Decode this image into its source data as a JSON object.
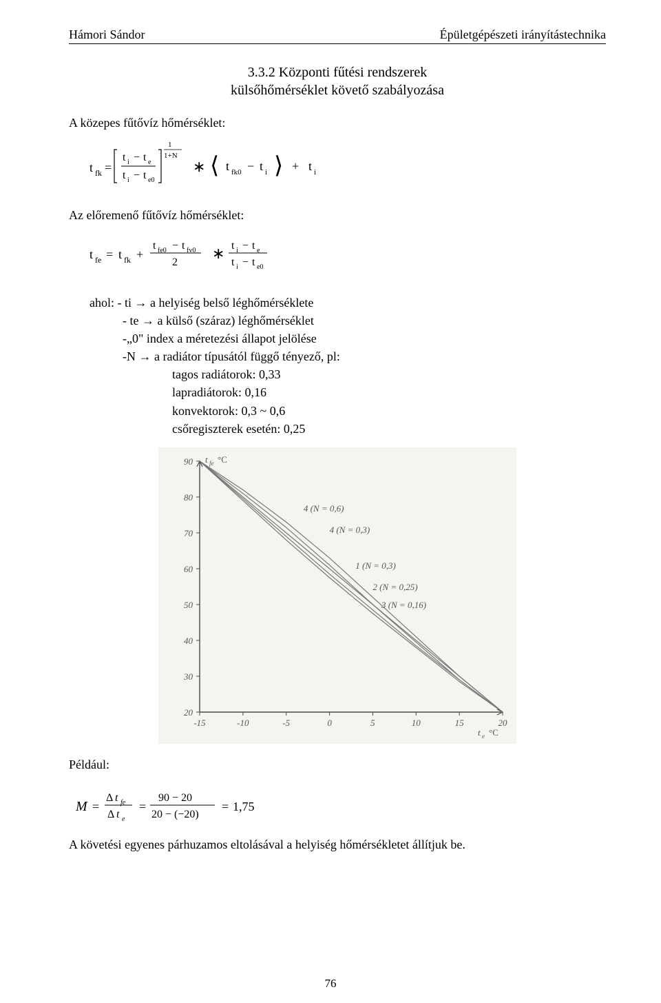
{
  "header": {
    "left": "Hámori Sándor",
    "right": "Épületgépészeti irányítástechnika"
  },
  "section": {
    "number": "3.3.2",
    "title_line1": "3.3.2 Központi fűtési rendszerek",
    "title_line2": "külsőhőmérséklet követő szabályozása"
  },
  "intro": {
    "kozepes_label": "A közepes fűtővíz hőmérséklet:",
    "eloremeno_label": "Az előremenő fűtővíz hőmérséklet:"
  },
  "formula1": {
    "lhs_sub": "fk",
    "frac_top": "t_i − t_e",
    "frac_bot": "t_i − t_e0",
    "exp_top": "1",
    "exp_bot": "1+N",
    "mid_a": "t_fk0 − t_i",
    "tail": "+  t_i",
    "font_size": 18
  },
  "formula2": {
    "lhs_sub": "fe",
    "rhs_first_sub": "fk",
    "frac1_top": "t_fe0 − t_fv0",
    "frac1_bot": "2",
    "frac2_top": "t_i − t_e",
    "frac2_bot": "t_i − t_e0",
    "font_size": 18
  },
  "definitions": {
    "intro": "ahol: - ti → a helyiség belső léghőmérséklete",
    "line2": "- te → a külső (száraz) léghőmérséklet",
    "line3": "-„0\" index a méretezési állapot jelölése",
    "line4": "-N → a radiátor típusától függő tényező, pl:",
    "sub1": "tagos radiátorok: 0,33",
    "sub2": "lapradiátorok: 0,16",
    "sub3": "konvektorok: 0,3 ~ 0,6",
    "sub4": "csőregiszterek esetén: 0,25"
  },
  "chart": {
    "type": "line",
    "background": "#f5f4f0",
    "axis_color": "#4a4a4a",
    "curve_color": "#777777",
    "label_color": "#555555",
    "xlim": [
      -15,
      20
    ],
    "ylim": [
      20,
      90
    ],
    "xticks": [
      -15,
      -10,
      -5,
      0,
      5,
      10,
      15,
      20
    ],
    "yticks": [
      20,
      30,
      40,
      50,
      60,
      70,
      80,
      90
    ],
    "y_label": "t_fe °C",
    "x_label": "t_e °C",
    "curve_labels": [
      {
        "text": "4 (N = 0,6)",
        "x": -3,
        "y": 76
      },
      {
        "text": "4 (N = 0,3)",
        "x": 0,
        "y": 70
      },
      {
        "text": "1 (N = 0,3)",
        "x": 3,
        "y": 60
      },
      {
        "text": "2 (N = 0,25)",
        "x": 5,
        "y": 54
      },
      {
        "text": "3 (N = 0,16)",
        "x": 6,
        "y": 49
      }
    ],
    "curves": [
      {
        "points": [
          [
            -15,
            90
          ],
          [
            -10,
            82
          ],
          [
            -5,
            73
          ],
          [
            0,
            63
          ],
          [
            5,
            52
          ],
          [
            10,
            41
          ],
          [
            15,
            30
          ],
          [
            20,
            20
          ]
        ]
      },
      {
        "points": [
          [
            -15,
            90
          ],
          [
            -10,
            81
          ],
          [
            -5,
            71.5
          ],
          [
            0,
            61
          ],
          [
            5,
            50
          ],
          [
            10,
            39.5
          ],
          [
            15,
            29
          ],
          [
            20,
            20
          ]
        ]
      },
      {
        "points": [
          [
            -15,
            90
          ],
          [
            -10,
            80
          ],
          [
            -5,
            70
          ],
          [
            0,
            60
          ],
          [
            5,
            50
          ],
          [
            10,
            40
          ],
          [
            15,
            30
          ],
          [
            20,
            20
          ]
        ]
      },
      {
        "points": [
          [
            -15,
            90
          ],
          [
            -10,
            79.5
          ],
          [
            -5,
            69
          ],
          [
            0,
            58.5
          ],
          [
            5,
            48.5
          ],
          [
            10,
            38.5
          ],
          [
            15,
            29
          ],
          [
            20,
            20
          ]
        ]
      },
      {
        "points": [
          [
            -15,
            90
          ],
          [
            -10,
            79
          ],
          [
            -5,
            68
          ],
          [
            0,
            57.5
          ],
          [
            5,
            47.5
          ],
          [
            10,
            38
          ],
          [
            15,
            28.5
          ],
          [
            20,
            20
          ]
        ]
      }
    ],
    "font_size": 13,
    "tick_font_size": 13
  },
  "example": {
    "label": "Például:",
    "lhs": "M",
    "frac1_top": "Δt_fe",
    "frac1_bot": "Δt_e",
    "frac2_top": "90 − 20",
    "frac2_bot": "20 − (−20)",
    "result": "1,75",
    "follow_text": "A követési egyenes párhuzamos eltolásával a helyiség hőmérsékletet állítjuk be."
  },
  "page_number": "76"
}
